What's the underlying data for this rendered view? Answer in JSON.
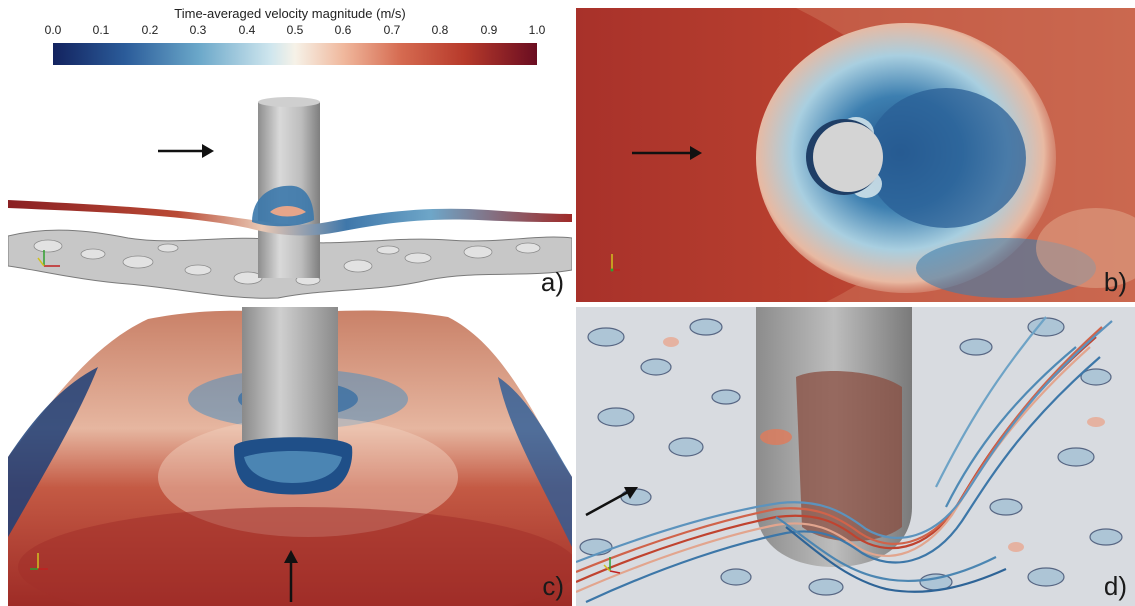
{
  "colorbar": {
    "title": "Time-averaged velocity magnitude (m/s)",
    "ticks": [
      "0.0",
      "0.1",
      "0.2",
      "0.3",
      "0.4",
      "0.5",
      "0.6",
      "0.7",
      "0.8",
      "0.9",
      "1.0"
    ],
    "range": [
      0.0,
      1.0
    ],
    "colors": [
      "#13235f",
      "#2b5c9a",
      "#6aa7c9",
      "#cfe6ee",
      "#f6f2e8",
      "#f0b89d",
      "#d56a50",
      "#b73a2b",
      "#6a0d21"
    ]
  },
  "panels": {
    "a": {
      "label": "a)"
    },
    "b": {
      "label": "b)"
    },
    "c": {
      "label": "c)"
    },
    "d": {
      "label": "d)"
    }
  }
}
